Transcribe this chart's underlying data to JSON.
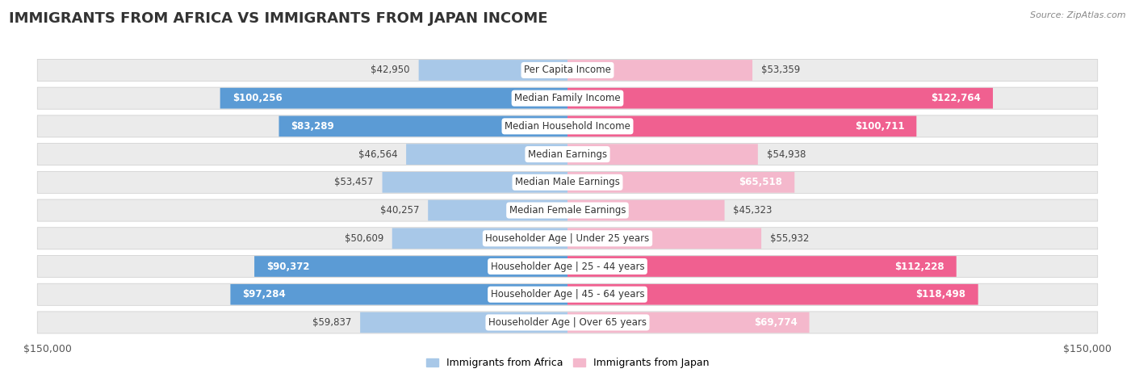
{
  "title": "IMMIGRANTS FROM AFRICA VS IMMIGRANTS FROM JAPAN INCOME",
  "source": "Source: ZipAtlas.com",
  "categories": [
    "Per Capita Income",
    "Median Family Income",
    "Median Household Income",
    "Median Earnings",
    "Median Male Earnings",
    "Median Female Earnings",
    "Householder Age | Under 25 years",
    "Householder Age | 25 - 44 years",
    "Householder Age | 45 - 64 years",
    "Householder Age | Over 65 years"
  ],
  "africa_values": [
    42950,
    100256,
    83289,
    46564,
    53457,
    40257,
    50609,
    90372,
    97284,
    59837
  ],
  "japan_values": [
    53359,
    122764,
    100711,
    54938,
    65518,
    45323,
    55932,
    112228,
    118498,
    69774
  ],
  "africa_color_light": "#a8c8e8",
  "africa_color_dark": "#5b9bd5",
  "japan_color_light": "#f4b8cc",
  "japan_color_dark": "#f06090",
  "africa_dark_threshold": 75000,
  "japan_dark_threshold": 75000,
  "max_value": 150000,
  "row_bg_color": "#ebebeb",
  "title_fontsize": 13,
  "label_fontsize": 8.5,
  "value_fontsize": 8.5,
  "legend_label_africa": "Immigrants from Africa",
  "legend_label_japan": "Immigrants from Japan",
  "africa_white_threshold": 60000,
  "japan_white_threshold": 60000
}
